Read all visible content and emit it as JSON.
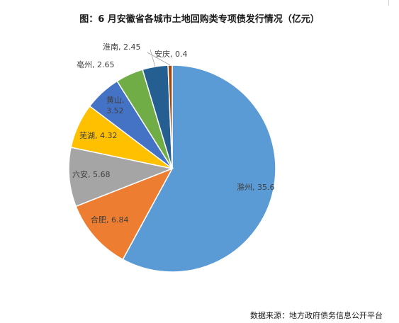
{
  "title": "图：6 月安徽省各城市土地回购类专项债发行情况（亿元）",
  "source": "数据来源：地方政府债务信息公开平台",
  "chart_data": {
    "type": "pie",
    "title": "图：6 月安徽省各城市土地回购类专项债发行情况（亿元）",
    "slices": [
      {
        "label": "滁州",
        "value": 35.6,
        "color": "#5b9bd5"
      },
      {
        "label": "合肥",
        "value": 6.84,
        "color": "#ed7d31"
      },
      {
        "label": "六安",
        "value": 5.68,
        "color": "#a5a5a5"
      },
      {
        "label": "芜湖",
        "value": 4.32,
        "color": "#ffc000"
      },
      {
        "label": "黄山",
        "value": 3.52,
        "color": "#4472c4"
      },
      {
        "label": "亳州",
        "value": 2.65,
        "color": "#70ad47"
      },
      {
        "label": "淮南",
        "value": 2.45,
        "color": "#255e91"
      },
      {
        "label": "安庆",
        "value": 0.4,
        "color": "#9e480e"
      }
    ]
  }
}
